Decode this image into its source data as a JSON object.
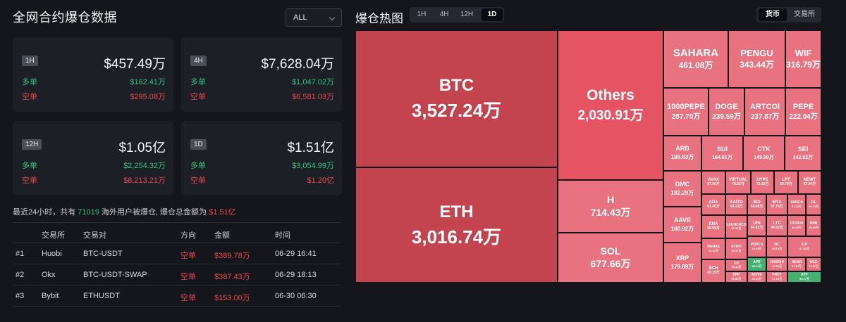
{
  "left": {
    "title": "全网合约爆仓数据",
    "range_select": "ALL",
    "cards": [
      {
        "badge": "1H",
        "total": "$457.49万",
        "long_label": "多单",
        "long_value": "$162.41万",
        "short_label": "空单",
        "short_value": "$295.08万"
      },
      {
        "badge": "4H",
        "total": "$7,628.04万",
        "long_label": "多单",
        "long_value": "$1,047.02万",
        "short_label": "空单",
        "short_value": "$6,581.03万"
      },
      {
        "badge": "12H",
        "total": "$1.05亿",
        "long_label": "多单",
        "long_value": "$2,254.32万",
        "short_label": "空单",
        "short_value": "$8,213.21万"
      },
      {
        "badge": "1D",
        "total": "$1.51亿",
        "long_label": "多单",
        "long_value": "$3,054.99万",
        "short_label": "空单",
        "short_value": "$1.20亿"
      }
    ],
    "summary": {
      "prefix": "最近24小时，共有 ",
      "count": "71019",
      "middle": " 海外用户被爆仓, 爆仓总金额为 ",
      "total": "$1.51亿"
    },
    "table": {
      "headers": [
        "",
        "交易所",
        "交易对",
        "方向",
        "金额",
        "时间"
      ],
      "rows": [
        {
          "rank": "#1",
          "exchange": "Huobi",
          "pair": "BTC-USDT",
          "side": "空单",
          "amount": "$389.78万",
          "time": "06-29 16:41"
        },
        {
          "rank": "#2",
          "exchange": "Okx",
          "pair": "BTC-USDT-SWAP",
          "side": "空单",
          "amount": "$387.43万",
          "time": "06-29 18:13"
        },
        {
          "rank": "#3",
          "exchange": "Bybit",
          "pair": "ETHUSDT",
          "side": "空单",
          "amount": "$153.00万",
          "time": "06-30 06:30"
        }
      ]
    }
  },
  "right": {
    "title": "爆仓热图",
    "timeframes": [
      "1H",
      "4H",
      "12H",
      "1D"
    ],
    "active_timeframe": "1D",
    "modes": [
      "货币",
      "交易所"
    ],
    "active_mode": "货币",
    "colors": {
      "dark_red": "#c3434f",
      "mid_red": "#e55463",
      "light_red": "#e8727f",
      "green": "#44b171"
    },
    "tiles": [
      {
        "sym": "BTC",
        "amt": "3,527.24万",
        "color": "dark_red"
      },
      {
        "sym": "ETH",
        "amt": "3,016.74万",
        "color": "dark_red"
      },
      {
        "sym": "Others",
        "amt": "2,030.91万",
        "color": "mid_red"
      },
      {
        "sym": "H",
        "amt": "714.43万",
        "color": "light_red"
      },
      {
        "sym": "SOL",
        "amt": "677.66万",
        "color": "light_red"
      },
      {
        "sym": "SAHARA",
        "amt": "461.08万",
        "color": "light_red"
      },
      {
        "sym": "PENGU",
        "amt": "343.44万",
        "color": "light_red"
      },
      {
        "sym": "WIF",
        "amt": "316.79万",
        "color": "light_red"
      },
      {
        "sym": "1000PEPE",
        "amt": "287.70万",
        "color": "light_red"
      },
      {
        "sym": "DOGE",
        "amt": "239.59万",
        "color": "light_red"
      },
      {
        "sym": "ARTCOI",
        "amt": "237.87万",
        "color": "light_red"
      },
      {
        "sym": "PEPE",
        "amt": "222.04万",
        "color": "light_red"
      },
      {
        "sym": "ARB",
        "amt": "186.63万",
        "color": "light_red"
      },
      {
        "sym": "SUI",
        "amt": "164.81万",
        "color": "light_red"
      },
      {
        "sym": "CTK",
        "amt": "149.99万",
        "color": "light_red"
      },
      {
        "sym": "SEI",
        "amt": "142.82万",
        "color": "light_red"
      },
      {
        "sym": "AVAX",
        "amt": "97.90万",
        "color": "light_red"
      },
      {
        "sym": "VIRTUAL",
        "amt": "78.66万",
        "color": "light_red"
      },
      {
        "sym": "HYPE",
        "amt": "72.65万",
        "color": "light_red"
      },
      {
        "sym": "LPT",
        "amt": "69.79万",
        "color": "light_red"
      },
      {
        "sym": "NEWT",
        "amt": "67.94万",
        "color": "light_red"
      },
      {
        "sym": "DMC",
        "amt": "182.29万",
        "color": "light_red"
      },
      {
        "sym": "ADA",
        "amt": "67.46万",
        "color": "light_red"
      },
      {
        "sym": "BID",
        "amt": "58.08万",
        "color": "light_red"
      },
      {
        "sym": "MYX",
        "amt": "57.76万",
        "color": "light_red"
      },
      {
        "sym": "1000CA",
        "amt": "57.23万",
        "color": "light_red"
      },
      {
        "sym": "FIL",
        "amt": "56.79万",
        "color": "light_red"
      },
      {
        "sym": "ENA",
        "amt": "55.95万",
        "color": "light_red"
      },
      {
        "sym": "AAVE",
        "amt": "180.92万",
        "color": "light_red"
      },
      {
        "sym": "UNI",
        "amt": "54.01万",
        "color": "light_red"
      },
      {
        "sym": "LTC",
        "amt": "49.52万",
        "color": "light_red"
      },
      {
        "sym": "DODEN",
        "amt": "49.33万",
        "color": "light_red"
      },
      {
        "sym": "BNB",
        "amt": "48.26万",
        "color": "light_red"
      },
      {
        "sym": "KAITO",
        "amt": "54.13万",
        "color": "light_red"
      },
      {
        "sym": "NANAS",
        "amt": "53.62万",
        "color": "light_red"
      },
      {
        "sym": "LAUNCHCO",
        "amt": "52.13万",
        "color": "light_red"
      },
      {
        "sym": "POPCA",
        "amt": "43.83万",
        "color": "light_red"
      },
      {
        "sym": "NC",
        "amt": "38.18万",
        "color": "light_red"
      },
      {
        "sym": "ICP",
        "amt": "37.93万",
        "color": "light_red"
      },
      {
        "sym": "ETHFI",
        "amt": "50.51万",
        "color": "light_red"
      },
      {
        "sym": "APE",
        "amt": "50.72万",
        "color": "green"
      },
      {
        "sym": "1000SHI",
        "amt": "42.98万",
        "color": "light_red"
      },
      {
        "sym": "NEAR",
        "amt": "37.84万",
        "color": "light_red"
      },
      {
        "sym": "WLD",
        "amt": "37.47万",
        "color": "light_red"
      },
      {
        "sym": "XRP",
        "amt": "179.89万",
        "color": "light_red"
      },
      {
        "sym": "BCH",
        "amt": "60.19万",
        "color": "light_red"
      },
      {
        "sym": "OP",
        "amt": "59.46万",
        "color": "light_red"
      },
      {
        "sym": "SPK",
        "amt": "50.30万",
        "color": "light_red"
      },
      {
        "sym": "MOVE",
        "amt": "41.94万",
        "color": "light_red"
      },
      {
        "sym": "PNUT",
        "amt": "37.64万",
        "color": "light_red"
      },
      {
        "sym": "APT",
        "amt": "34.17万",
        "color": "green"
      }
    ]
  }
}
